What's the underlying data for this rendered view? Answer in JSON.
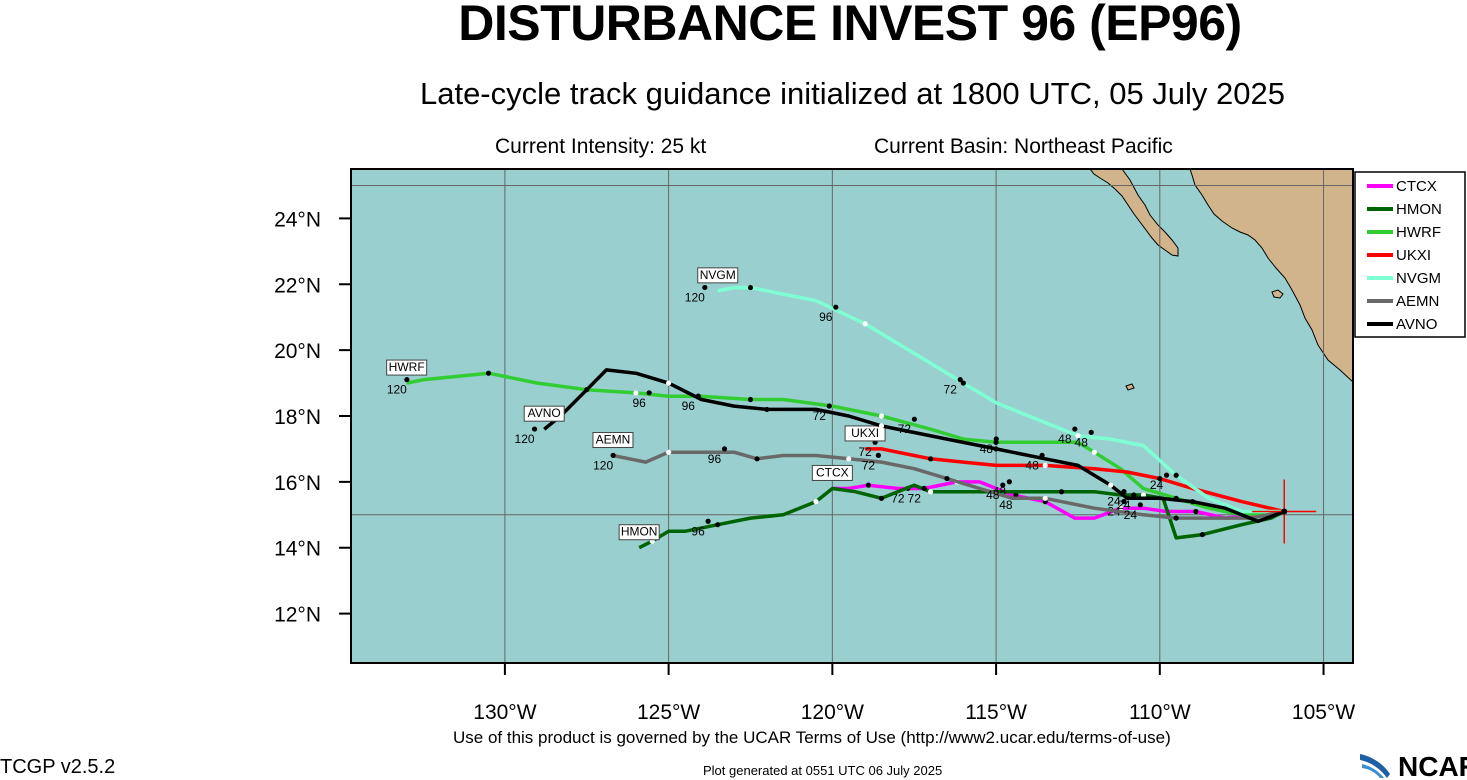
{
  "header": {
    "title": "DISTURBANCE INVEST 96 (EP96)",
    "subtitle": "Late-cycle track guidance initialized at 1800 UTC, 05 July 2025",
    "intensity": "Current Intensity: 25 kt",
    "basin": "Current Basin: Northeast Pacific"
  },
  "footer": {
    "terms": "Use of this product is governed by the UCAR Terms of Use (http://www2.ucar.edu/terms-of-use)",
    "version": "TCGP v2.5.2",
    "generated": "Plot generated at 0551 UTC   06 July 2025",
    "logo_text": "NCAR"
  },
  "colors": {
    "ocean": "#99cfcf",
    "land": "#d2b48c",
    "grid": "#666666",
    "current_position": "#ff0000"
  },
  "chart_data": {
    "type": "map",
    "projection": "lat-lon",
    "lon_range": [
      -134.7,
      -104.1
    ],
    "lat_range": [
      10.5,
      25.5
    ],
    "lon_ticks": [
      -130,
      -125,
      -120,
      -115,
      -110,
      -105
    ],
    "lon_tick_labels": [
      "130°W",
      "125°W",
      "120°W",
      "115°W",
      "110°W",
      "105°W"
    ],
    "lat_ticks": [
      12,
      14,
      16,
      18,
      20,
      22,
      24
    ],
    "lat_tick_labels": [
      "12°N",
      "14°N",
      "16°N",
      "18°N",
      "20°N",
      "22°N",
      "24°N"
    ],
    "grid": true,
    "grid_lons": [
      -130,
      -125,
      -120,
      -115,
      -110,
      -105
    ],
    "grid_lats": [
      15,
      25
    ],
    "legend_position": "top-right",
    "current_position": {
      "lon": -106.2,
      "lat": 15.1
    },
    "models": [
      {
        "name": "CTCX",
        "color": "#ff00ff",
        "end_label": "CTCX",
        "track": [
          [
            -106.2,
            15.1
          ],
          [
            -107.2,
            15.0
          ],
          [
            -108.0,
            14.9
          ],
          [
            -108.9,
            15.1
          ],
          [
            -109.8,
            15.1
          ],
          [
            -110.5,
            15.2
          ],
          [
            -111.2,
            15.2
          ],
          [
            -112.0,
            14.9
          ],
          [
            -112.6,
            14.9
          ],
          [
            -113.5,
            15.4
          ],
          [
            -114.5,
            15.6
          ],
          [
            -115.5,
            16.0
          ],
          [
            -116.2,
            16.0
          ],
          [
            -117.2,
            15.8
          ],
          [
            -118.0,
            15.8
          ],
          [
            -118.9,
            15.9
          ],
          [
            -119.5,
            15.8
          ],
          [
            -120.0,
            15.8
          ]
        ],
        "labels": [
          {
            "lon": -111.4,
            "lat": 15.1,
            "text": "24"
          },
          {
            "lon": -114.7,
            "lat": 15.3,
            "text": "48"
          },
          {
            "lon": -118.0,
            "lat": 15.5,
            "text": "72"
          }
        ]
      },
      {
        "name": "HMON",
        "color": "#006400",
        "end_label": "HMON",
        "track": [
          [
            -106.2,
            15.1
          ],
          [
            -106.6,
            14.9
          ],
          [
            -107.5,
            14.7
          ],
          [
            -108.7,
            14.4
          ],
          [
            -109.5,
            14.3
          ],
          [
            -109.9,
            15.5
          ],
          [
            -110.5,
            15.6
          ],
          [
            -111.2,
            15.6
          ],
          [
            -112.0,
            15.7
          ],
          [
            -113.0,
            15.7
          ],
          [
            -114.5,
            15.7
          ],
          [
            -116.0,
            15.7
          ],
          [
            -117.0,
            15.7
          ],
          [
            -117.5,
            15.9
          ],
          [
            -118.0,
            15.7
          ],
          [
            -118.5,
            15.5
          ],
          [
            -119.3,
            15.7
          ],
          [
            -120.0,
            15.8
          ],
          [
            -120.5,
            15.4
          ],
          [
            -121.5,
            15.0
          ],
          [
            -122.5,
            14.9
          ],
          [
            -123.5,
            14.7
          ],
          [
            -124.5,
            14.5
          ],
          [
            -125.0,
            14.5
          ],
          [
            -125.5,
            14.2
          ],
          [
            -125.9,
            14.0
          ]
        ],
        "labels": [
          {
            "lon": -111.1,
            "lat": 15.3,
            "text": "24"
          },
          {
            "lon": -114.9,
            "lat": 15.7,
            "text": "48"
          },
          {
            "lon": -117.5,
            "lat": 15.5,
            "text": "72"
          },
          {
            "lon": -124.1,
            "lat": 14.5,
            "text": "96"
          }
        ]
      },
      {
        "name": "HWRF",
        "color": "#32cd32",
        "end_label": "HWRF",
        "track": [
          [
            -106.2,
            15.1
          ],
          [
            -107.5,
            15.0
          ],
          [
            -108.5,
            15.2
          ],
          [
            -109.5,
            15.5
          ],
          [
            -110.5,
            15.8
          ],
          [
            -111.2,
            16.4
          ],
          [
            -112.0,
            16.9
          ],
          [
            -112.5,
            17.2
          ],
          [
            -113.5,
            17.2
          ],
          [
            -115.0,
            17.2
          ],
          [
            -116.0,
            17.3
          ],
          [
            -117.0,
            17.6
          ],
          [
            -118.5,
            18.0
          ],
          [
            -120.0,
            18.3
          ],
          [
            -121.5,
            18.5
          ],
          [
            -122.5,
            18.5
          ],
          [
            -124.0,
            18.6
          ],
          [
            -125.0,
            18.6
          ],
          [
            -126.0,
            18.7
          ],
          [
            -127.5,
            18.8
          ],
          [
            -129.0,
            19.0
          ],
          [
            -130.5,
            19.3
          ],
          [
            -131.5,
            19.2
          ],
          [
            -132.5,
            19.1
          ],
          [
            -133.0,
            19.0
          ]
        ],
        "labels": [
          {
            "lon": -112.9,
            "lat": 17.3,
            "text": "48"
          },
          {
            "lon": -117.8,
            "lat": 17.6,
            "text": "72"
          },
          {
            "lon": -125.9,
            "lat": 18.4,
            "text": "96"
          },
          {
            "lon": -133.3,
            "lat": 18.8,
            "text": "120"
          }
        ]
      },
      {
        "name": "UKXI",
        "color": "#ff0000",
        "end_label": "UKXI",
        "track": [
          [
            -106.2,
            15.1
          ],
          [
            -107.5,
            15.4
          ],
          [
            -109.0,
            15.8
          ],
          [
            -110.0,
            16.1
          ],
          [
            -111.0,
            16.3
          ],
          [
            -112.0,
            16.4
          ],
          [
            -113.5,
            16.5
          ],
          [
            -115.0,
            16.5
          ],
          [
            -116.0,
            16.6
          ],
          [
            -117.0,
            16.7
          ],
          [
            -118.5,
            17.0
          ],
          [
            -119.0,
            17.0
          ]
        ],
        "labels": [
          {
            "lon": -110.1,
            "lat": 15.9,
            "text": "24"
          },
          {
            "lon": -113.9,
            "lat": 16.5,
            "text": "48"
          },
          {
            "lon": -119.0,
            "lat": 16.9,
            "text": "72"
          }
        ]
      },
      {
        "name": "NVGM",
        "color": "#7fffd4",
        "end_label": "NVGM",
        "track": [
          [
            -106.2,
            15.1
          ],
          [
            -107.5,
            15.1
          ],
          [
            -108.5,
            15.5
          ],
          [
            -109.5,
            16.2
          ],
          [
            -110.5,
            17.1
          ],
          [
            -111.5,
            17.3
          ],
          [
            -112.5,
            17.4
          ],
          [
            -114.0,
            18.0
          ],
          [
            -115.0,
            18.4
          ],
          [
            -116.0,
            19.0
          ],
          [
            -117.0,
            19.6
          ],
          [
            -118.0,
            20.2
          ],
          [
            -119.0,
            20.8
          ],
          [
            -120.5,
            21.5
          ],
          [
            -121.5,
            21.7
          ],
          [
            -122.5,
            21.9
          ],
          [
            -123.0,
            21.9
          ],
          [
            -123.5,
            21.8
          ]
        ],
        "labels": [
          {
            "lon": -112.4,
            "lat": 17.2,
            "text": "48"
          },
          {
            "lon": -116.4,
            "lat": 18.8,
            "text": "72"
          },
          {
            "lon": -120.2,
            "lat": 21.0,
            "text": "96"
          },
          {
            "lon": -124.2,
            "lat": 21.6,
            "text": "120"
          }
        ]
      },
      {
        "name": "AEMN",
        "color": "#696969",
        "end_label": "AEMN",
        "track": [
          [
            -106.2,
            15.1
          ],
          [
            -107.2,
            14.9
          ],
          [
            -108.5,
            14.9
          ],
          [
            -109.5,
            14.9
          ],
          [
            -110.5,
            15.0
          ],
          [
            -112.0,
            15.2
          ],
          [
            -113.5,
            15.5
          ],
          [
            -114.5,
            15.5
          ],
          [
            -115.5,
            15.8
          ],
          [
            -116.5,
            16.1
          ],
          [
            -117.5,
            16.4
          ],
          [
            -118.5,
            16.6
          ],
          [
            -119.5,
            16.7
          ],
          [
            -120.5,
            16.8
          ],
          [
            -121.5,
            16.8
          ],
          [
            -122.3,
            16.7
          ],
          [
            -123.0,
            16.9
          ],
          [
            -124.0,
            16.9
          ],
          [
            -125.0,
            16.9
          ],
          [
            -125.7,
            16.6
          ],
          [
            -126.2,
            16.7
          ],
          [
            -126.7,
            16.8
          ]
        ],
        "labels": [
          {
            "lon": -110.9,
            "lat": 15.0,
            "text": "24"
          },
          {
            "lon": -115.1,
            "lat": 15.6,
            "text": "48"
          },
          {
            "lon": -118.9,
            "lat": 16.5,
            "text": "72"
          },
          {
            "lon": -123.6,
            "lat": 16.7,
            "text": "96"
          },
          {
            "lon": -127.0,
            "lat": 16.5,
            "text": "120"
          }
        ]
      },
      {
        "name": "AVNO",
        "color": "#000000",
        "end_label": "AVNO",
        "track": [
          [
            -106.2,
            15.1
          ],
          [
            -107.0,
            14.8
          ],
          [
            -108.0,
            15.2
          ],
          [
            -109.0,
            15.4
          ],
          [
            -110.0,
            15.5
          ],
          [
            -111.0,
            15.5
          ],
          [
            -111.5,
            15.9
          ],
          [
            -112.5,
            16.5
          ],
          [
            -113.5,
            16.7
          ],
          [
            -115.0,
            17.0
          ],
          [
            -116.5,
            17.3
          ],
          [
            -117.5,
            17.5
          ],
          [
            -118.5,
            17.7
          ],
          [
            -119.5,
            18.0
          ],
          [
            -120.5,
            18.2
          ],
          [
            -122.0,
            18.2
          ],
          [
            -123.0,
            18.3
          ],
          [
            -124.0,
            18.5
          ],
          [
            -125.0,
            19.0
          ],
          [
            -126.0,
            19.3
          ],
          [
            -126.9,
            19.4
          ],
          [
            -127.5,
            18.8
          ],
          [
            -128.3,
            18.0
          ],
          [
            -128.8,
            17.6
          ]
        ],
        "labels": [
          {
            "lon": -111.4,
            "lat": 15.4,
            "text": "24"
          },
          {
            "lon": -115.3,
            "lat": 17.0,
            "text": "48"
          },
          {
            "lon": -120.4,
            "lat": 18.0,
            "text": "72"
          },
          {
            "lon": -124.4,
            "lat": 18.3,
            "text": "96"
          },
          {
            "lon": -129.4,
            "lat": 17.3,
            "text": "120"
          }
        ]
      }
    ]
  }
}
